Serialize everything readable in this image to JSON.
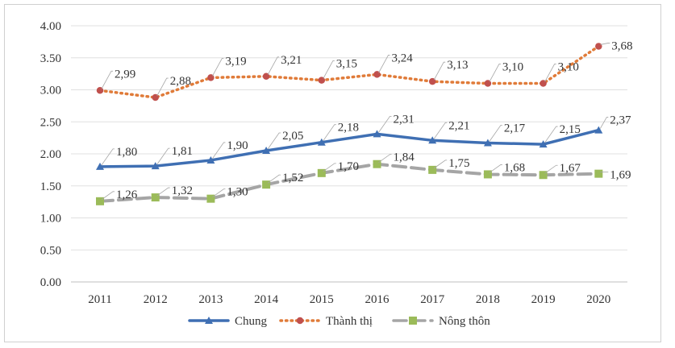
{
  "chart_data": {
    "type": "line",
    "categories": [
      "2011",
      "2012",
      "2013",
      "2014",
      "2015",
      "2016",
      "2017",
      "2018",
      "2019",
      "2020"
    ],
    "ylim": [
      0,
      4
    ],
    "yticks": [
      "0.00",
      "0.50",
      "1.00",
      "1.50",
      "2.00",
      "2.50",
      "3.00",
      "3.50",
      "4.00"
    ],
    "grid": true,
    "legend_position": "bottom",
    "series": [
      {
        "name": "Chung",
        "values": [
          1.8,
          1.81,
          1.9,
          2.05,
          2.18,
          2.31,
          2.21,
          2.17,
          2.15,
          2.37
        ],
        "labels": [
          "1,80",
          "1,81",
          "1,90",
          "2,05",
          "2,18",
          "2,31",
          "2,21",
          "2,17",
          "2,15",
          "2,37"
        ],
        "color": "#3f6fb3",
        "marker": "triangle",
        "marker_color": "#3f6fb3",
        "line": "solid"
      },
      {
        "name": "Thành thị",
        "values": [
          2.99,
          2.88,
          3.19,
          3.21,
          3.15,
          3.24,
          3.13,
          3.1,
          3.1,
          3.68
        ],
        "labels": [
          "2,99",
          "2,88",
          "3,19",
          "3,21",
          "3,15",
          "3,24",
          "3,13",
          "3,10",
          "3,10",
          "3,68"
        ],
        "color": "#e07b39",
        "marker": "circle",
        "marker_color": "#c0504d",
        "line": "dotted"
      },
      {
        "name": "Nông thôn",
        "values": [
          1.26,
          1.32,
          1.3,
          1.52,
          1.7,
          1.84,
          1.75,
          1.68,
          1.67,
          1.69
        ],
        "labels": [
          "1,26",
          "1,32",
          "1,30",
          "1,52",
          "1,70",
          "1,84",
          "1,75",
          "1,68",
          "1,67",
          "1,69"
        ],
        "color": "#a5a5a5",
        "marker": "square",
        "marker_color": "#9bbb59",
        "line": "dashed"
      }
    ]
  }
}
